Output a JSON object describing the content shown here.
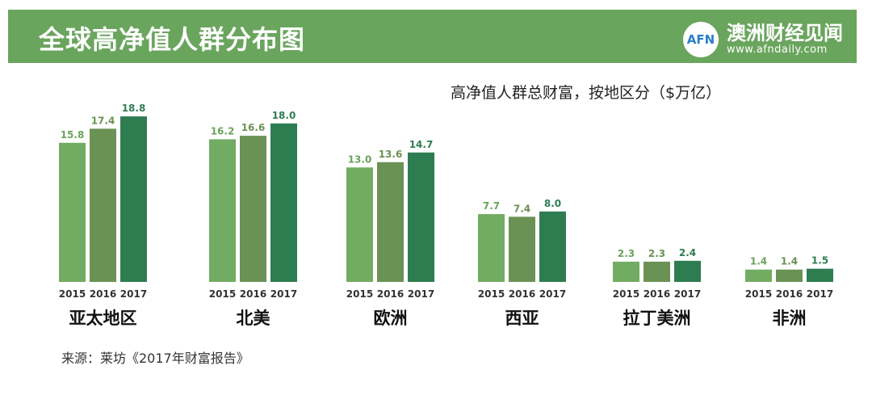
{
  "header": {
    "title": "全球高净值人群分布图",
    "logo_text": "AFN",
    "brand_name": "澳洲财经见闻",
    "brand_url": "www.afndaily.com"
  },
  "colors": {
    "header_bg": "#6aa55e",
    "series": [
      "#72ac62",
      "#6a9254",
      "#2e7d50"
    ],
    "label_colors": [
      "#6aa35c",
      "#6a9254",
      "#2e7d50"
    ]
  },
  "chart_data": {
    "type": "bar",
    "title": "高净值人群总财富，按地区分（$万亿）",
    "ylim": [
      0,
      20
    ],
    "years": [
      "2015",
      "2016",
      "2017"
    ],
    "groups": [
      {
        "name": "亚太地区",
        "values": [
          15.8,
          17.4,
          18.8
        ]
      },
      {
        "name": "北美",
        "values": [
          16.2,
          16.6,
          18.0
        ]
      },
      {
        "name": "欧洲",
        "values": [
          13.0,
          13.6,
          14.7
        ]
      },
      {
        "name": "西亚",
        "values": [
          7.7,
          7.4,
          8.0
        ]
      },
      {
        "name": "拉丁美洲",
        "values": [
          2.3,
          2.3,
          2.4
        ]
      },
      {
        "name": "非洲",
        "values": [
          1.4,
          1.4,
          1.5
        ]
      }
    ]
  },
  "footer": {
    "source": "来源：莱坊《2017年财富报告》"
  }
}
